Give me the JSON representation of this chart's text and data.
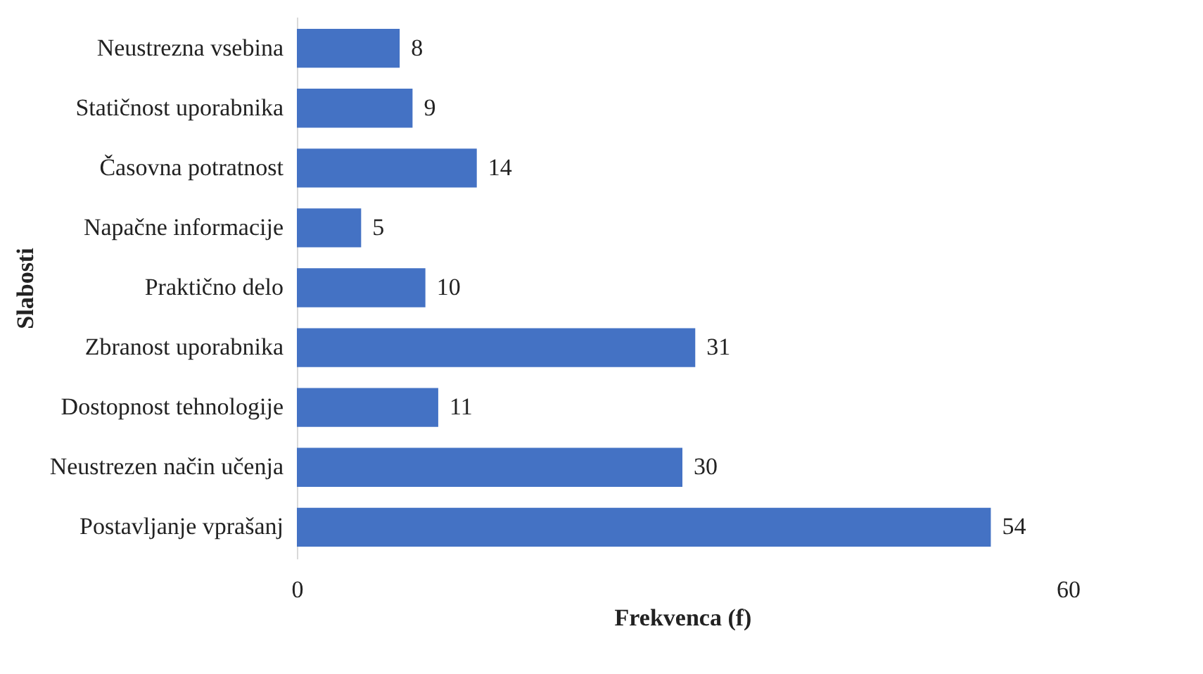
{
  "chart_data": {
    "type": "bar",
    "orientation": "horizontal",
    "xlabel": "Frekvenca (f)",
    "ylabel": "Slabosti",
    "categories": [
      "Neustrezna vsebina",
      "Statičnost uporabnika",
      "Časovna potratnost",
      "Napačne informacije",
      "Praktično delo",
      "Zbranost uporabnika",
      "Dostopnost tehnologije",
      "Neustrezen način učenja",
      "Postavljanje vprašanj"
    ],
    "values": [
      8,
      9,
      14,
      5,
      10,
      31,
      11,
      30,
      54
    ],
    "color": "#4472c4",
    "xlim": [
      0,
      60
    ],
    "xticks": [
      0,
      60
    ],
    "grid": false,
    "data_labels": true
  }
}
